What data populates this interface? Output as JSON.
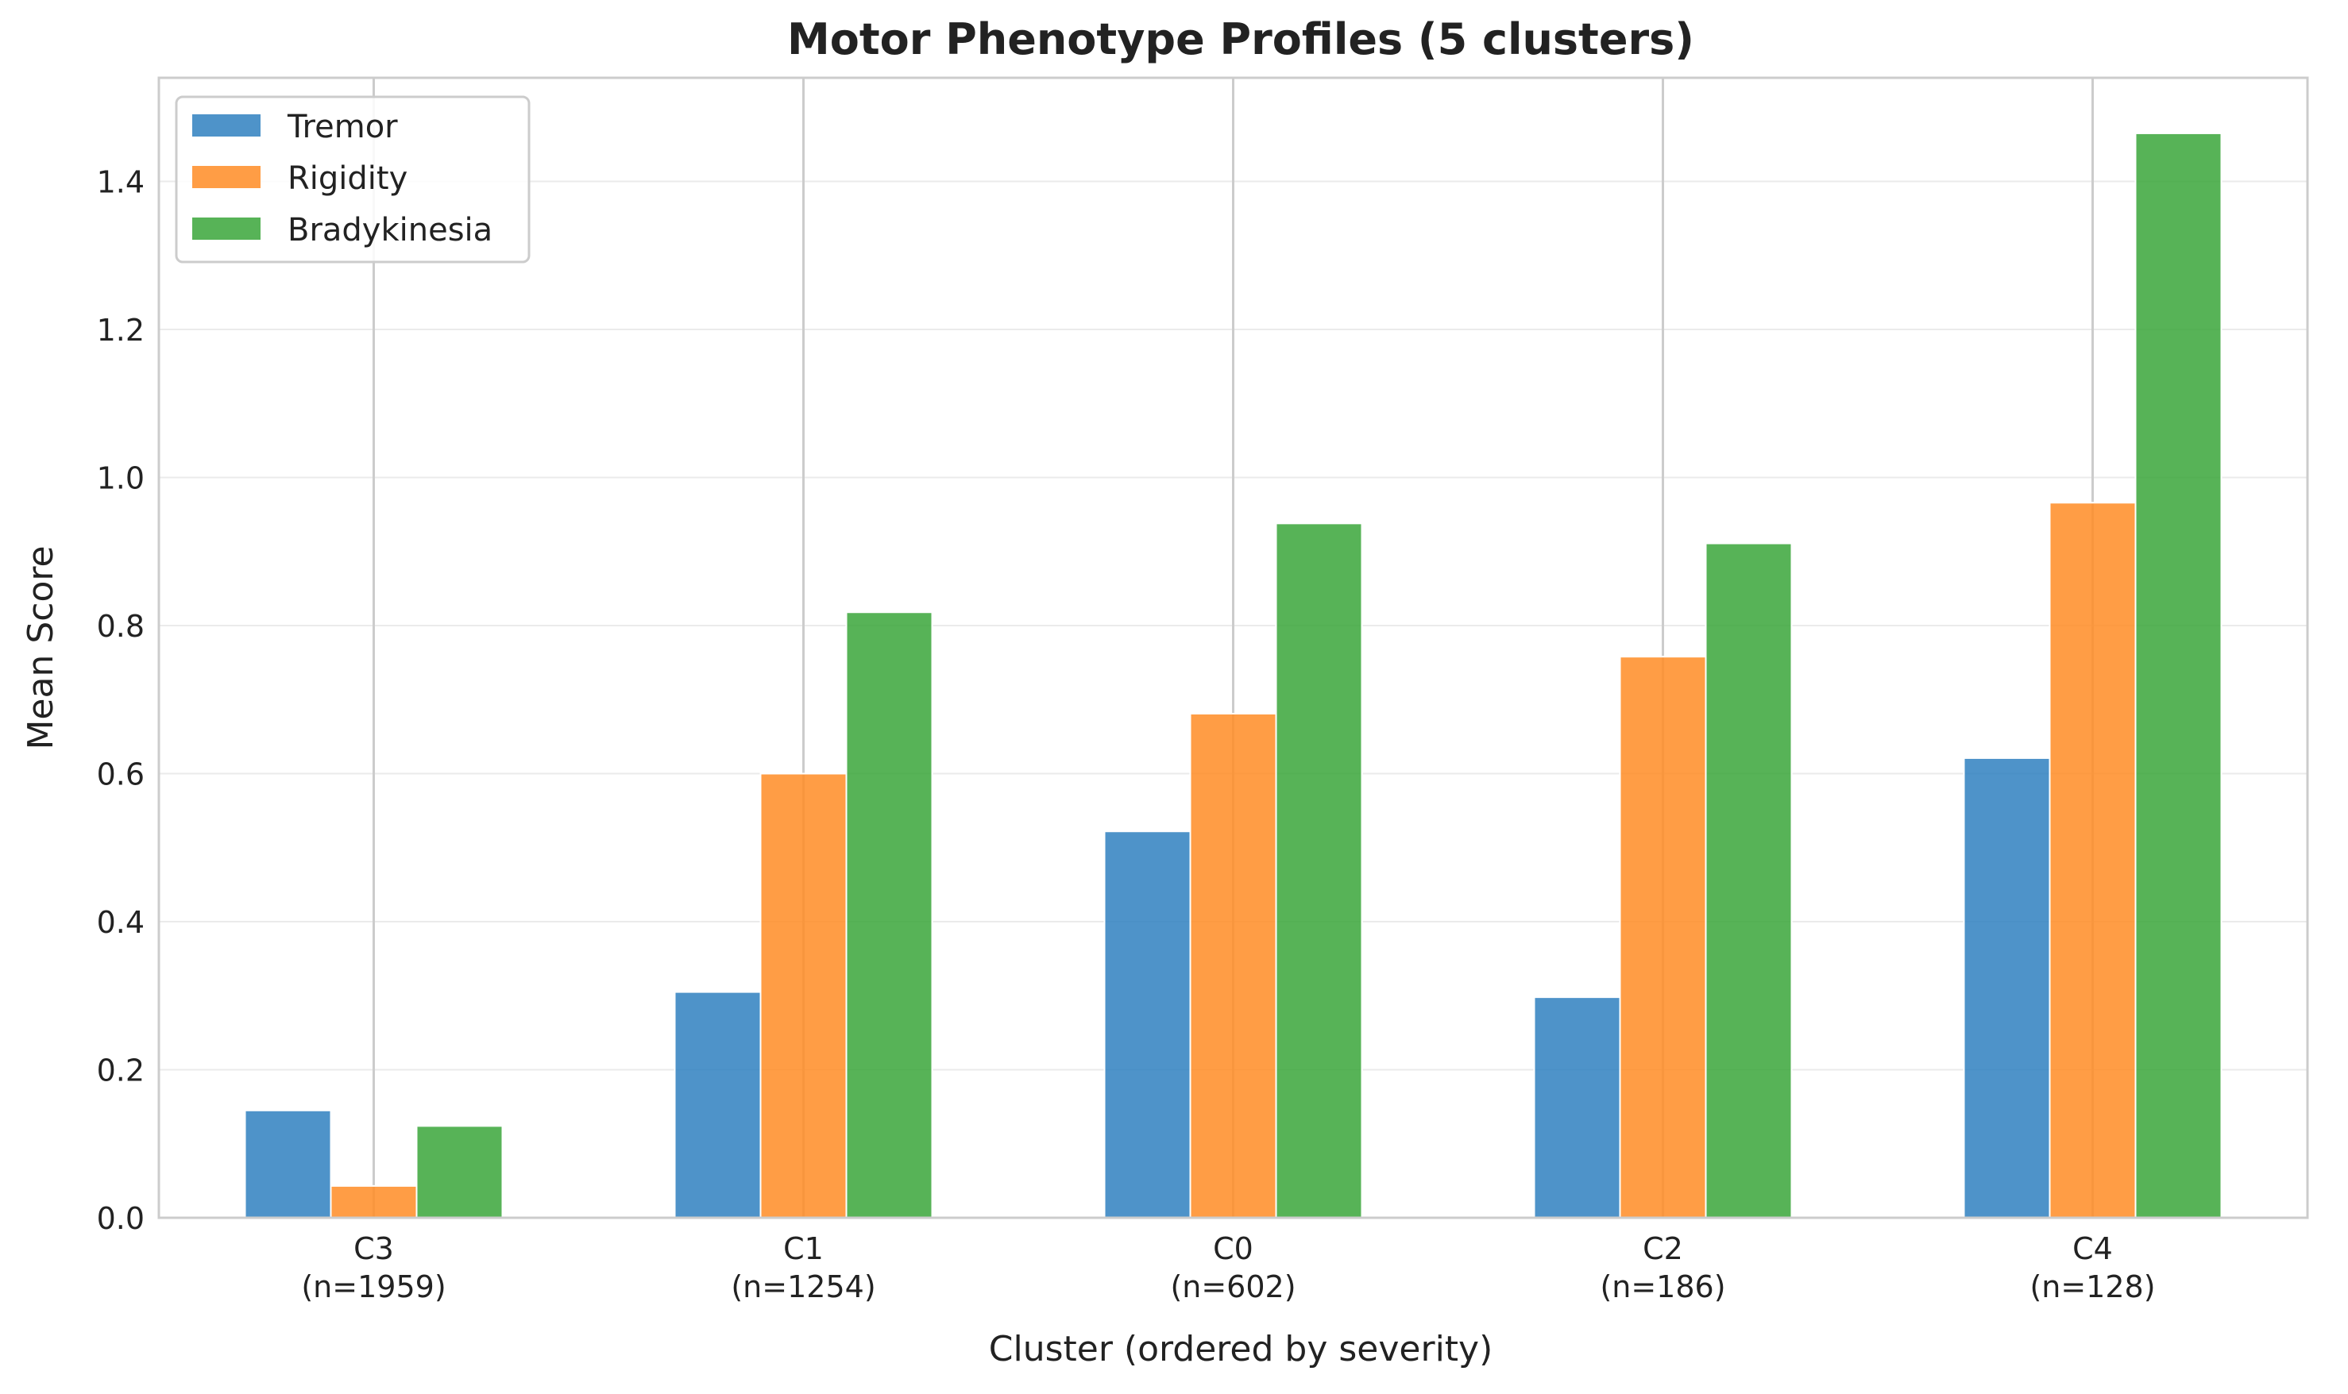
{
  "chart_data": {
    "type": "bar",
    "title": "Motor Phenotype Profiles (5 clusters)",
    "xlabel": "Cluster (ordered by severity)",
    "ylabel": "Mean Score",
    "categories": [
      {
        "label": "C3",
        "n": "(n=1959)"
      },
      {
        "label": "C1",
        "n": "(n=1254)"
      },
      {
        "label": "C0",
        "n": "(n=602)"
      },
      {
        "label": "C2",
        "n": "(n=186)"
      },
      {
        "label": "C4",
        "n": "(n=128)"
      }
    ],
    "series": [
      {
        "name": "Tremor",
        "color": "#2f80c0",
        "values": [
          0.145,
          0.305,
          0.522,
          0.298,
          0.621
        ]
      },
      {
        "name": "Rigidity",
        "color": "#ff8c24",
        "values": [
          0.043,
          0.6,
          0.681,
          0.758,
          0.966
        ]
      },
      {
        "name": "Bradykinesia",
        "color": "#3aa63a",
        "values": [
          0.124,
          0.818,
          0.938,
          0.911,
          1.465
        ]
      }
    ],
    "yticks": [
      "0.0",
      "0.2",
      "0.4",
      "0.6",
      "0.8",
      "1.0",
      "1.2",
      "1.4"
    ],
    "ylim": [
      0,
      1.54
    ],
    "grid": true,
    "legend_position": "top-left"
  }
}
